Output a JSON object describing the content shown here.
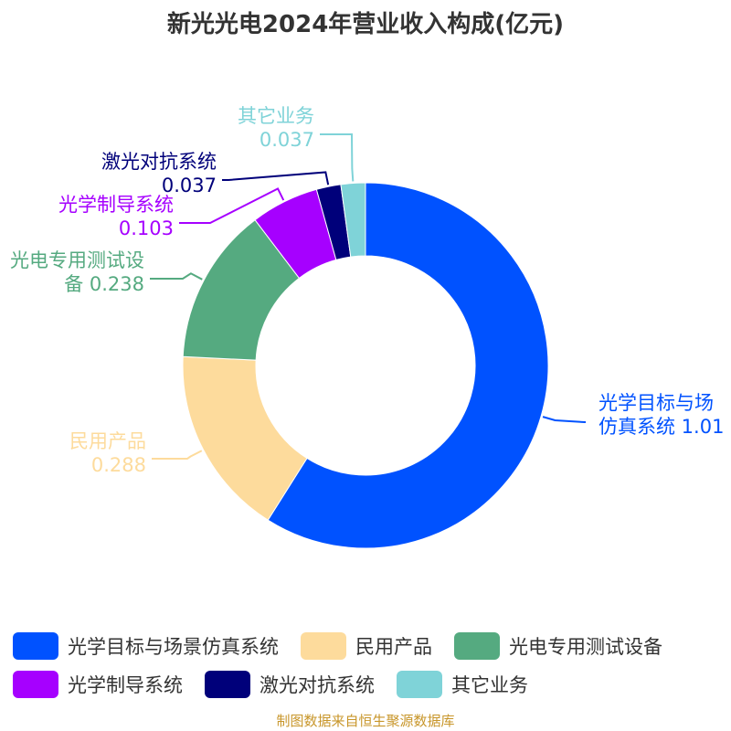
{
  "title": "新光光电2024年营业收入构成(亿元)",
  "footer": "制图数据来自恒生聚源数据库",
  "chart_data": {
    "type": "pie",
    "donut": true,
    "title": "新光光电2024年营业收入构成(亿元)",
    "slices": [
      {
        "name": "光学目标与场景仿真系统",
        "value": 1.01,
        "color": "#0052FF",
        "label_lines": [
          "光学目标与场",
          "仿真系统 1.01"
        ]
      },
      {
        "name": "民用产品",
        "value": 0.288,
        "color": "#FDDB9C",
        "label_lines": [
          "民用产品",
          "0.288"
        ]
      },
      {
        "name": "光电专用测试设备",
        "value": 0.238,
        "color": "#55AA80",
        "label_lines": [
          "光电专用测试设",
          "备 0.238"
        ]
      },
      {
        "name": "光学制导系统",
        "value": 0.103,
        "color": "#A600FF",
        "label_lines": [
          "光学制导系统",
          "0.103"
        ]
      },
      {
        "name": "激光对抗系统",
        "value": 0.037,
        "color": "#00007A",
        "label_lines": [
          "激光对抗系统",
          "0.037"
        ]
      },
      {
        "name": "其它业务",
        "value": 0.037,
        "color": "#7FD3D8",
        "label_lines": [
          "其它业务",
          "0.037"
        ]
      }
    ],
    "legend_position": "bottom"
  },
  "legend": {
    "rows": [
      [
        {
          "label": "光学目标与场景仿真系统",
          "color": "#0052FF"
        },
        {
          "label": "民用产品",
          "color": "#FDDB9C"
        },
        {
          "label": "光电专用测试设备",
          "color": "#55AA80"
        }
      ],
      [
        {
          "label": "光学制导系统",
          "color": "#A600FF"
        },
        {
          "label": "激光对抗系统",
          "color": "#00007A"
        },
        {
          "label": "其它业务",
          "color": "#7FD3D8"
        }
      ]
    ]
  }
}
